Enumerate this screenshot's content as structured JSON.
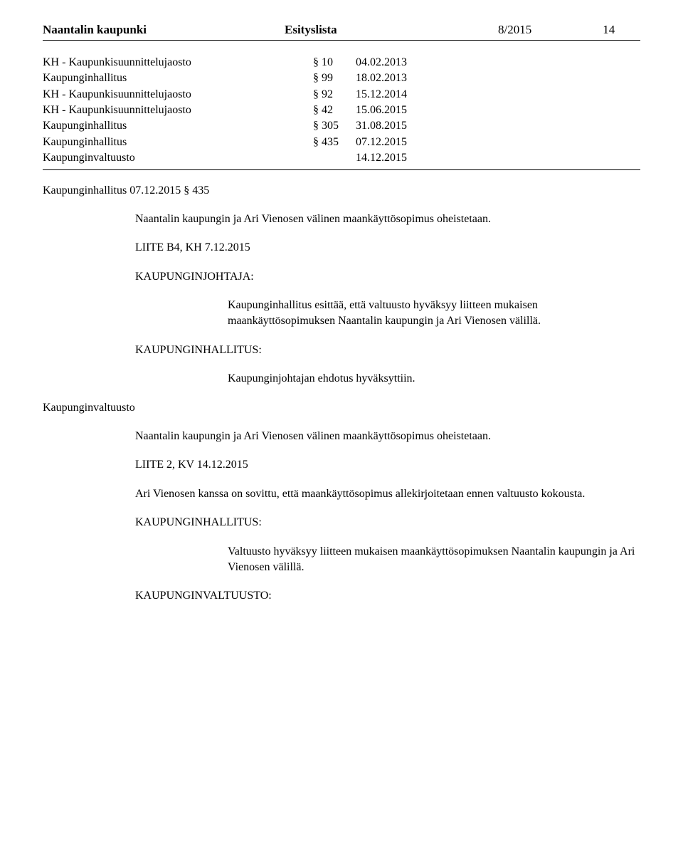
{
  "header": {
    "organization": "Naantalin kaupunki",
    "docType": "Esityslista",
    "docNumber": "8/2015",
    "pageNumber": "14"
  },
  "history": [
    {
      "name": "KH - Kaupunkisuunnittelujaosto",
      "section": "§ 10",
      "date": "04.02.2013"
    },
    {
      "name": "Kaupunginhallitus",
      "section": "§ 99",
      "date": "18.02.2013"
    },
    {
      "name": "KH - Kaupunkisuunnittelujaosto",
      "section": "§ 92",
      "date": "15.12.2014"
    },
    {
      "name": "KH - Kaupunkisuunnittelujaosto",
      "section": "§ 42",
      "date": "15.06.2015"
    },
    {
      "name": "Kaupunginhallitus",
      "section": "§ 305",
      "date": "31.08.2015"
    },
    {
      "name": "Kaupunginhallitus",
      "section": "§ 435",
      "date": "07.12.2015"
    },
    {
      "name": "Kaupunginvaltuusto",
      "section": "",
      "date": "14.12.2015"
    }
  ],
  "body": {
    "sectionRef": "Kaupunginhallitus 07.12.2015 § 435",
    "para1": "Naantalin kaupungin ja Ari Vienosen välinen maankäyttösopimus oheistetaan.",
    "liite1": "LIITE B4, KH 7.12.2015",
    "role1": "KAUPUNGINJOHTAJA:",
    "role1Text": "Kaupunginhallitus esittää, että valtuusto hyväksyy liitteen mukaisen maankäyttösopimuksen Naantalin kaupungin ja Ari Vienosen välillä.",
    "role2": "KAUPUNGINHALLITUS:",
    "role2Text": "Kaupunginjohtajan ehdotus hyväksyttiin.",
    "bottomTitle": "Kaupunginvaltuusto",
    "para2": "Naantalin kaupungin ja Ari Vienosen välinen maankäyttösopimus oheistetaan.",
    "liite2": "LIITE 2, KV 14.12.2015",
    "para3": "Ari Vienosen kanssa on sovittu, että maankäyttösopimus allekirjoitetaan ennen valtuusto kokousta.",
    "role3": "KAUPUNGINHALLITUS:",
    "role3Text": "Valtuusto hyväksyy liitteen mukaisen maankäyttösopimuksen Naantalin kaupungin ja Ari Vienosen välillä.",
    "role4": "KAUPUNGINVALTUUSTO:"
  }
}
